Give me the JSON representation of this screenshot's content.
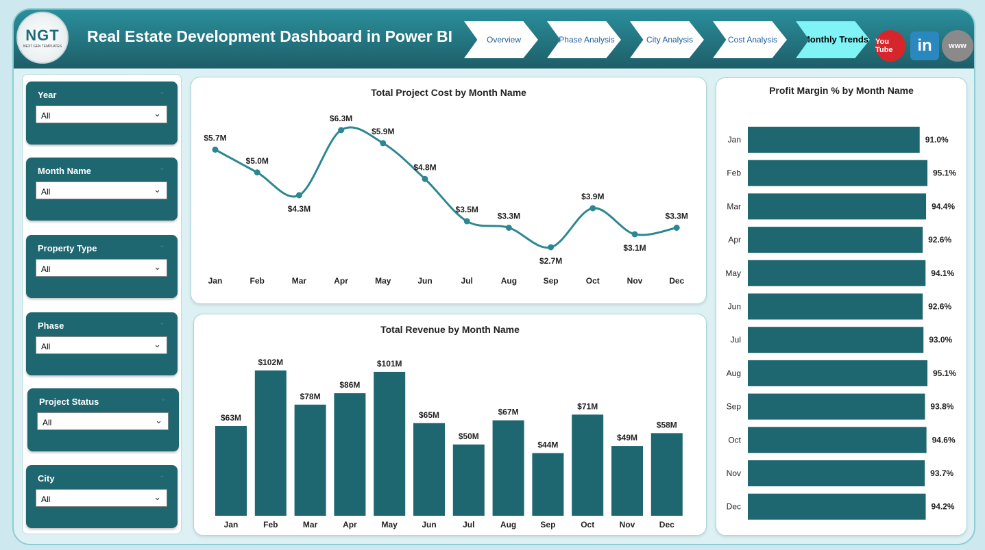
{
  "header": {
    "logo_text": "NGT",
    "logo_sub": "NEXT GEN TEMPLATES",
    "title": "Real Estate Development Dashboard in Power BI"
  },
  "nav": [
    {
      "label": "Overview"
    },
    {
      "label": "Phase Analysis"
    },
    {
      "label": "City Analysis"
    },
    {
      "label": "Cost Analysis"
    },
    {
      "label": "Monthly Trends",
      "active": true
    }
  ],
  "social": [
    {
      "icon": "youtube-icon",
      "label": "You Tube",
      "color": "#d7262b"
    },
    {
      "icon": "linkedin-icon",
      "label": "in",
      "color": "#2a88bf"
    },
    {
      "icon": "globe-icon",
      "label": "www",
      "color": "#8a8a8a"
    }
  ],
  "filters": [
    {
      "label": "Year",
      "value": "All"
    },
    {
      "label": "Month Name",
      "value": "All"
    },
    {
      "label": "Property Type",
      "value": "All"
    },
    {
      "label": "Phase",
      "value": "All"
    },
    {
      "label": "Project Status",
      "value": "All"
    },
    {
      "label": "City",
      "value": "All"
    }
  ],
  "colors": {
    "accent": "#1e6670",
    "line": "#2c8791"
  },
  "chart_data": [
    {
      "type": "line",
      "title": "Total Project Cost by Month Name",
      "categories": [
        "Jan",
        "Feb",
        "Mar",
        "Apr",
        "May",
        "Jun",
        "Jul",
        "Aug",
        "Sep",
        "Oct",
        "Nov",
        "Dec"
      ],
      "values": [
        5.7,
        5.0,
        4.3,
        6.3,
        5.9,
        4.8,
        3.5,
        3.3,
        2.7,
        3.9,
        3.1,
        3.3
      ],
      "labels": [
        "$5.7M",
        "$5.0M",
        "$4.3M",
        "$6.3M",
        "$5.9M",
        "$4.8M",
        "$3.5M",
        "$3.3M",
        "$2.7M",
        "$3.9M",
        "$3.1M",
        "$3.3M"
      ],
      "unit": "M"
    },
    {
      "type": "bar",
      "title": "Total Revenue by Month Name",
      "categories": [
        "Jan",
        "Feb",
        "Mar",
        "Apr",
        "May",
        "Jun",
        "Jul",
        "Aug",
        "Sep",
        "Oct",
        "Nov",
        "Dec"
      ],
      "values": [
        63,
        102,
        78,
        86,
        101,
        65,
        50,
        67,
        44,
        71,
        49,
        58
      ],
      "labels": [
        "$63M",
        "$102M",
        "$78M",
        "$86M",
        "$101M",
        "$65M",
        "$50M",
        "$67M",
        "$44M",
        "$71M",
        "$49M",
        "$58M"
      ]
    },
    {
      "type": "bar",
      "orientation": "horizontal",
      "title": "Profit Margin % by Month Name",
      "categories": [
        "Jan",
        "Feb",
        "Mar",
        "Apr",
        "May",
        "Jun",
        "Jul",
        "Aug",
        "Sep",
        "Oct",
        "Nov",
        "Dec"
      ],
      "values": [
        91.0,
        95.1,
        94.4,
        92.6,
        94.1,
        92.6,
        93.0,
        95.1,
        93.8,
        94.6,
        93.7,
        94.2
      ],
      "labels": [
        "91.0%",
        "95.1%",
        "94.4%",
        "92.6%",
        "94.1%",
        "92.6%",
        "93.0%",
        "95.1%",
        "93.8%",
        "94.6%",
        "93.7%",
        "94.2%"
      ]
    }
  ]
}
